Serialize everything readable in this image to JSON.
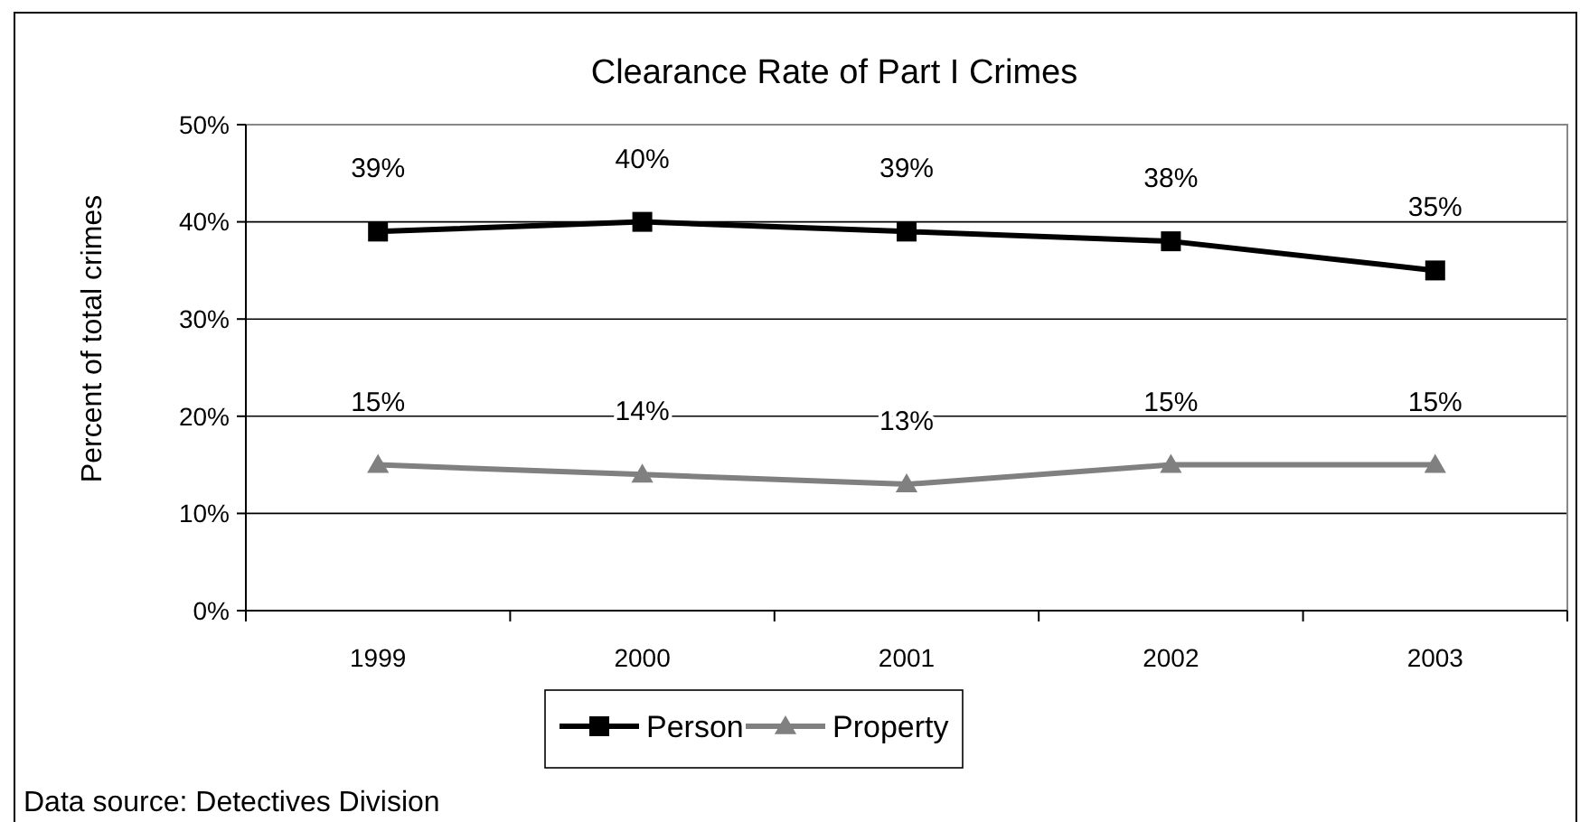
{
  "chart_data": {
    "type": "line",
    "title": "Clearance Rate of Part I Crimes",
    "ylabel": "Percent of total crimes",
    "categories": [
      "1999",
      "2000",
      "2001",
      "2002",
      "2003"
    ],
    "series": [
      {
        "name": "Person",
        "color": "#000000",
        "marker": "square",
        "values": [
          39,
          40,
          39,
          38,
          35
        ],
        "value_labels": [
          "39%",
          "40%",
          "39%",
          "38%",
          "35%"
        ]
      },
      {
        "name": "Property",
        "color": "#808080",
        "marker": "triangle",
        "values": [
          15,
          14,
          13,
          15,
          15
        ],
        "value_labels": [
          "15%",
          "14%",
          "13%",
          "15%",
          "15%"
        ]
      }
    ],
    "ylim": [
      0,
      50
    ],
    "yticks": [
      {
        "value": 0,
        "label": "0%"
      },
      {
        "value": 10,
        "label": "10%"
      },
      {
        "value": 20,
        "label": "20%"
      },
      {
        "value": 30,
        "label": "30%"
      },
      {
        "value": 40,
        "label": "40%"
      },
      {
        "value": 50,
        "label": "50%"
      }
    ],
    "grid": "y",
    "legend": "bottom",
    "annotations": [
      "Data source: Detectives Division"
    ]
  }
}
